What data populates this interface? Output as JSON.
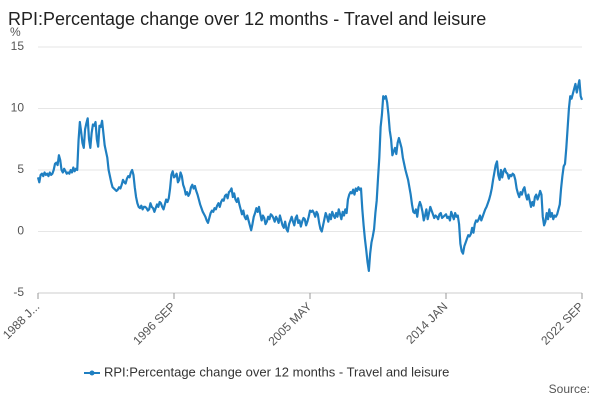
{
  "chart_data": {
    "type": "line",
    "title": "RPI:Percentage change over 12 months - Travel and leisure",
    "y_label": "%",
    "source": "Source:",
    "categories": [
      "1988 J...",
      null,
      null,
      null,
      null,
      null,
      null,
      null,
      null,
      null,
      null,
      null,
      null,
      null,
      null,
      null,
      null,
      null,
      null,
      null,
      null,
      null,
      null,
      null,
      null,
      null,
      null,
      null,
      null,
      null,
      null,
      null,
      null,
      null,
      null,
      null,
      null,
      null,
      null,
      null,
      null,
      null,
      null,
      null,
      null,
      null,
      null,
      null,
      null,
      null,
      null,
      null,
      null,
      null,
      null,
      null,
      null,
      null,
      null,
      null,
      null,
      null,
      null,
      null,
      null,
      null,
      null,
      null,
      null,
      null,
      null,
      null,
      null,
      null,
      null,
      null,
      null,
      null,
      null,
      null,
      null,
      null,
      null,
      null,
      null,
      null,
      null,
      null,
      null,
      null,
      null,
      null,
      null,
      null,
      null,
      null,
      null,
      null,
      null,
      null,
      null,
      null,
      null,
      null,
      "1996 SEP",
      null,
      null,
      null,
      null,
      null,
      null,
      null,
      null,
      null,
      null,
      null,
      null,
      null,
      null,
      null,
      null,
      null,
      null,
      null,
      null,
      null,
      null,
      null,
      null,
      null,
      null,
      null,
      null,
      null,
      null,
      null,
      null,
      null,
      null,
      null,
      null,
      null,
      null,
      null,
      null,
      null,
      null,
      null,
      null,
      null,
      null,
      null,
      null,
      null,
      null,
      null,
      null,
      null,
      null,
      null,
      null,
      null,
      null,
      null,
      null,
      null,
      null,
      null,
      null,
      null,
      null,
      null,
      null,
      null,
      null,
      null,
      null,
      null,
      null,
      null,
      null,
      null,
      null,
      null,
      null,
      null,
      null,
      null,
      null,
      null,
      null,
      null,
      null,
      null,
      null,
      null,
      null,
      null,
      null,
      null,
      null,
      null,
      null,
      null,
      null,
      null,
      null,
      null,
      "2005 MAY",
      null,
      null,
      null,
      null,
      null,
      null,
      null,
      null,
      null,
      null,
      null,
      null,
      null,
      null,
      null,
      null,
      null,
      null,
      null,
      null,
      null,
      null,
      null,
      null,
      null,
      null,
      null,
      null,
      null,
      null,
      null,
      null,
      null,
      null,
      null,
      null,
      null,
      null,
      null,
      null,
      null,
      null,
      null,
      null,
      null,
      null,
      null,
      null,
      null,
      null,
      null,
      null,
      null,
      null,
      null,
      null,
      null,
      null,
      null,
      null,
      null,
      null,
      null,
      null,
      null,
      null,
      null,
      null,
      null,
      null,
      null,
      null,
      null,
      null,
      null,
      null,
      null,
      null,
      null,
      null,
      null,
      null,
      null,
      null,
      null,
      null,
      null,
      null,
      null,
      null,
      null,
      null,
      null,
      null,
      null,
      null,
      null,
      null,
      null,
      null,
      null,
      null,
      null,
      "2014 JAN",
      null,
      null,
      null,
      null,
      null,
      null,
      null,
      null,
      null,
      null,
      null,
      null,
      null,
      null,
      null,
      null,
      null,
      null,
      null,
      null,
      null,
      null,
      null,
      null,
      null,
      null,
      null,
      null,
      null,
      null,
      null,
      null,
      null,
      null,
      null,
      null,
      null,
      null,
      null,
      null,
      null,
      null,
      null,
      null,
      null,
      null,
      null,
      null,
      null,
      null,
      null,
      null,
      null,
      null,
      null,
      null,
      null,
      null,
      null,
      null,
      null,
      null,
      null,
      null,
      null,
      null,
      null,
      null,
      null,
      null,
      null,
      null,
      null,
      null,
      null,
      null,
      null,
      null,
      null,
      null,
      null,
      null,
      null,
      null,
      null,
      null,
      null,
      null,
      null,
      null,
      null,
      null,
      null,
      null,
      null,
      null,
      null,
      null,
      null,
      null,
      null,
      null,
      null,
      "2022 SEP"
    ],
    "series": [
      {
        "name": "RPI:Percentage change over 12 months - Travel and leisure",
        "color": "#1f7fc1",
        "values": [
          4.4,
          4.0,
          4.6,
          4.7,
          4.5,
          4.8,
          4.6,
          4.7,
          4.5,
          4.8,
          4.6,
          4.7,
          5.0,
          5.5,
          5.6,
          5.4,
          6.2,
          5.8,
          5.0,
          4.8,
          5.1,
          4.9,
          4.7,
          4.8,
          4.7,
          5.0,
          4.8,
          5.2,
          4.9,
          5.1,
          5.0,
          7.4,
          8.9,
          8.1,
          7.2,
          6.8,
          8.3,
          8.8,
          9.2,
          7.5,
          6.8,
          8.0,
          8.7,
          8.6,
          8.9,
          7.5,
          6.9,
          8.6,
          8.5,
          9.0,
          8.0,
          7.0,
          6.5,
          6.0,
          5.0,
          4.5,
          4.0,
          3.6,
          3.5,
          3.4,
          3.3,
          3.4,
          3.6,
          3.5,
          3.8,
          4.2,
          4.0,
          3.9,
          4.3,
          4.5,
          4.4,
          4.8,
          5.0,
          4.6,
          3.6,
          2.8,
          2.3,
          2.0,
          1.9,
          2.1,
          1.8,
          2.0,
          2.0,
          1.9,
          1.7,
          1.8,
          2.3,
          2.0,
          1.9,
          1.6,
          1.9,
          2.2,
          2.0,
          2.4,
          2.3,
          2.0,
          1.8,
          2.2,
          2.6,
          2.4,
          2.7,
          3.5,
          4.6,
          4.9,
          4.4,
          4.5,
          4.7,
          4.0,
          4.2,
          4.8,
          4.5,
          3.8,
          3.5,
          3.0,
          3.2,
          2.9,
          3.1,
          3.6,
          3.8,
          3.5,
          3.7,
          3.3,
          3.0,
          2.6,
          2.2,
          1.9,
          1.6,
          1.4,
          1.2,
          0.9,
          0.7,
          1.1,
          1.5,
          1.7,
          1.6,
          1.9,
          1.8,
          2.1,
          2.3,
          2.0,
          2.4,
          2.6,
          2.5,
          2.9,
          3.0,
          2.7,
          3.2,
          3.3,
          3.5,
          2.8,
          3.1,
          2.6,
          2.4,
          2.7,
          2.2,
          1.8,
          1.4,
          1.7,
          1.2,
          1.0,
          1.3,
          0.9,
          0.5,
          0.1,
          0.6,
          1.2,
          1.5,
          1.9,
          1.6,
          2.0,
          1.4,
          0.9,
          1.3,
          1.1,
          0.6,
          0.8,
          1.2,
          1.0,
          1.4,
          1.3,
          1.1,
          0.8,
          1.2,
          1.0,
          0.7,
          1.3,
          0.9,
          0.5,
          0.3,
          0.8,
          0.2,
          0.0,
          0.6,
          0.9,
          1.2,
          0.8,
          0.5,
          1.1,
          1.3,
          0.7,
          0.9,
          0.4,
          0.8,
          1.1,
          1.0,
          0.5,
          0.8,
          1.2,
          1.7,
          1.6,
          1.7,
          1.5,
          1.2,
          1.6,
          1.4,
          0.7,
          0.2,
          0.0,
          0.5,
          1.0,
          1.5,
          1.2,
          0.8,
          1.4,
          1.0,
          1.6,
          1.3,
          1.1,
          1.5,
          1.2,
          1.8,
          1.4,
          1.0,
          1.6,
          1.3,
          1.8,
          1.5,
          2.6,
          3.0,
          3.2,
          3.1,
          3.4,
          3.0,
          3.5,
          3.3,
          3.6,
          3.4,
          3.5,
          1.8,
          0.5,
          -0.6,
          -1.5,
          -2.5,
          -3.2,
          -1.8,
          -0.9,
          -0.4,
          0.2,
          1.5,
          2.5,
          4.3,
          6.0,
          8.5,
          9.5,
          11.0,
          10.8,
          11.0,
          10.5,
          9.5,
          8.2,
          7.5,
          6.2,
          6.5,
          6.8,
          6.3,
          7.2,
          7.6,
          7.2,
          6.8,
          6.0,
          5.5,
          5.0,
          4.6,
          4.2,
          3.6,
          3.0,
          2.2,
          1.6,
          1.5,
          1.8,
          1.2,
          2.0,
          2.4,
          2.1,
          1.6,
          0.9,
          1.3,
          1.8,
          1.0,
          1.5,
          2.0,
          1.7,
          1.4,
          1.1,
          1.3,
          1.2,
          1.0,
          1.4,
          1.5,
          1.1,
          1.2,
          1.3,
          1.4,
          1.1,
          1.2,
          0.9,
          1.6,
          1.3,
          1.0,
          1.5,
          1.2,
          1.3,
          0.6,
          -1.0,
          -1.6,
          -1.8,
          -1.2,
          -0.9,
          -0.6,
          -0.3,
          -0.4,
          -0.2,
          0.3,
          -0.1,
          0.6,
          0.9,
          0.8,
          1.0,
          1.3,
          0.9,
          1.2,
          1.5,
          1.8,
          2.0,
          2.3,
          2.6,
          3.0,
          3.5,
          4.2,
          4.8,
          5.4,
          5.7,
          4.6,
          4.2,
          5.0,
          4.4,
          4.9,
          5.1,
          4.8,
          4.7,
          4.3,
          4.6,
          4.5,
          4.7,
          4.6,
          4.2,
          3.5,
          3.1,
          2.8,
          3.2,
          3.0,
          3.4,
          3.6,
          3.0,
          2.6,
          3.0,
          2.5,
          2.0,
          2.4,
          2.1,
          2.8,
          3.0,
          2.6,
          2.9,
          3.3,
          3.0,
          1.2,
          0.5,
          0.8,
          1.5,
          1.0,
          1.8,
          1.2,
          1.5,
          1.0,
          1.3,
          1.2,
          1.4,
          1.8,
          2.2,
          3.5,
          4.5,
          5.3,
          5.5,
          6.8,
          8.4,
          10.0,
          11.0,
          10.8,
          11.2,
          11.6,
          12.0,
          11.3,
          11.8,
          12.3,
          11.0,
          10.7
        ]
      }
    ],
    "ylim": [
      -5,
      15
    ],
    "yticks": [
      -5,
      0,
      5,
      10,
      15
    ],
    "grid": true,
    "legend": "bottom"
  }
}
